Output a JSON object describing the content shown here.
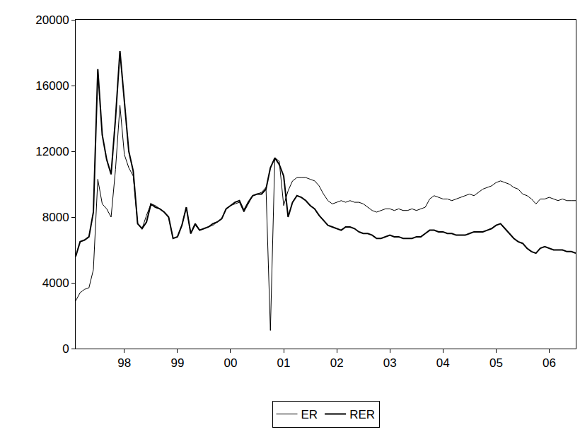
{
  "chart_data": {
    "type": "line",
    "categories": [
      null,
      null,
      null,
      null,
      null,
      null,
      null,
      null,
      null,
      null,
      null,
      "98",
      null,
      null,
      null,
      null,
      null,
      null,
      null,
      null,
      null,
      null,
      null,
      "99",
      null,
      null,
      null,
      null,
      null,
      null,
      null,
      null,
      null,
      null,
      null,
      "00",
      null,
      null,
      null,
      null,
      null,
      null,
      null,
      null,
      null,
      null,
      null,
      "01",
      null,
      null,
      null,
      null,
      null,
      null,
      null,
      null,
      null,
      null,
      null,
      "02",
      null,
      null,
      null,
      null,
      null,
      null,
      null,
      null,
      null,
      null,
      null,
      "03",
      null,
      null,
      null,
      null,
      null,
      null,
      null,
      null,
      null,
      null,
      null,
      "04",
      null,
      null,
      null,
      null,
      null,
      null,
      null,
      null,
      null,
      null,
      null,
      "05",
      null,
      null,
      null,
      null,
      null,
      null,
      null,
      null,
      null,
      null,
      null,
      "06",
      null,
      null,
      null,
      null,
      null,
      null
    ],
    "series": [
      {
        "name": "ER",
        "color": "#000000",
        "line_style": "solid",
        "values": [
          2900,
          3400,
          3600,
          3700,
          4800,
          10300,
          8800,
          8500,
          8000,
          10900,
          14800,
          11800,
          11000,
          10500,
          7600,
          7300,
          8100,
          8800,
          8700,
          8500,
          8300,
          8000,
          6700,
          6800,
          7500,
          8600,
          7000,
          7500,
          7200,
          7300,
          7400,
          7500,
          7700,
          7900,
          8500,
          8700,
          8800,
          8900,
          8300,
          8800,
          9300,
          9400,
          9500,
          9800,
          1100,
          11600,
          11400,
          8700,
          9600,
          10200,
          10400,
          10400,
          10400,
          10300,
          10200,
          9900,
          9400,
          9000,
          8800,
          8900,
          9000,
          8900,
          9000,
          8900,
          8900,
          8800,
          8600,
          8400,
          8300,
          8400,
          8500,
          8500,
          8400,
          8500,
          8400,
          8400,
          8500,
          8400,
          8500,
          8600,
          9100,
          9300,
          9200,
          9100,
          9100,
          9000,
          9100,
          9200,
          9300,
          9400,
          9300,
          9500,
          9700,
          9800,
          9900,
          10100,
          10200,
          10100,
          10000,
          9800,
          9700,
          9400,
          9300,
          9100,
          8800,
          9100,
          9100,
          9200,
          9100,
          9000,
          9100,
          9000,
          9000,
          9000
        ]
      },
      {
        "name": "RER",
        "color": "#000000",
        "line_style": "solid",
        "values": [
          5600,
          6500,
          6600,
          6800,
          8300,
          17000,
          13000,
          11500,
          10600,
          14000,
          18100,
          15000,
          12000,
          10800,
          7600,
          7300,
          7700,
          8800,
          8600,
          8500,
          8300,
          8000,
          6700,
          6800,
          7500,
          8600,
          7000,
          7600,
          7200,
          7300,
          7400,
          7600,
          7700,
          7900,
          8500,
          8700,
          8900,
          9000,
          8400,
          8900,
          9300,
          9400,
          9400,
          9700,
          11000,
          11600,
          11200,
          10500,
          8000,
          8900,
          9300,
          9200,
          9000,
          8700,
          8500,
          8100,
          7800,
          7500,
          7400,
          7300,
          7200,
          7400,
          7400,
          7300,
          7100,
          7000,
          7000,
          6900,
          6700,
          6700,
          6800,
          6900,
          6800,
          6800,
          6700,
          6700,
          6700,
          6800,
          6800,
          7000,
          7200,
          7200,
          7100,
          7100,
          7000,
          7000,
          6900,
          6900,
          6900,
          7000,
          7100,
          7100,
          7100,
          7200,
          7300,
          7500,
          7600,
          7300,
          7000,
          6700,
          6500,
          6400,
          6100,
          5900,
          5800,
          6100,
          6200,
          6100,
          6000,
          6000,
          6000,
          5900,
          5900,
          5800
        ]
      }
    ],
    "ylim": [
      0,
      20000
    ],
    "yticks": [
      0,
      4000,
      8000,
      12000,
      16000,
      20000
    ],
    "grid": false,
    "legend": "bottom"
  }
}
